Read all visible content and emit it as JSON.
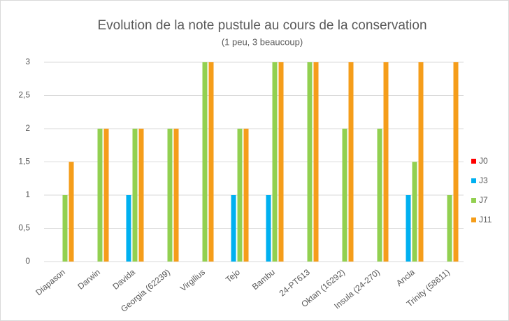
{
  "chart_data": {
    "type": "bar",
    "title": "Evolution de la note pustule au cours de la conservation",
    "subtitle": "(1 peu, 3 beaucoup)",
    "categories": [
      "Diapason",
      "Darwin",
      "Davida",
      "Georgia (62239)",
      "Virgilius",
      "Tejo",
      "Bambu",
      "24-PT613",
      "Oktan (16292)",
      "Insula (24-270)",
      "Ancla",
      "Trinity (58611)"
    ],
    "series": [
      {
        "name": "J0",
        "color": "#ff0000",
        "values": [
          0,
          0,
          0,
          0,
          0,
          0,
          0,
          0,
          0,
          0,
          0,
          0
        ]
      },
      {
        "name": "J3",
        "color": "#00b0f0",
        "values": [
          0,
          0,
          1,
          0,
          0,
          1,
          1,
          0,
          0,
          0,
          1,
          0
        ]
      },
      {
        "name": "J7",
        "color": "#92d050",
        "values": [
          1,
          2,
          2,
          2,
          3,
          2,
          3,
          3,
          2,
          2,
          1.5,
          1
        ]
      },
      {
        "name": "J11",
        "color": "#f59d1a",
        "values": [
          1.5,
          2,
          2,
          2,
          3,
          2,
          3,
          3,
          3,
          3,
          3,
          3
        ]
      }
    ],
    "ylim": [
      0,
      3
    ],
    "yticks": [
      0,
      {
        "value": 0.5,
        "label": "0,5"
      },
      1,
      {
        "value": 1.5,
        "label": "1,5"
      },
      2,
      {
        "value": 2.5,
        "label": "2,5"
      },
      3
    ],
    "grid": true,
    "legend": "right"
  }
}
